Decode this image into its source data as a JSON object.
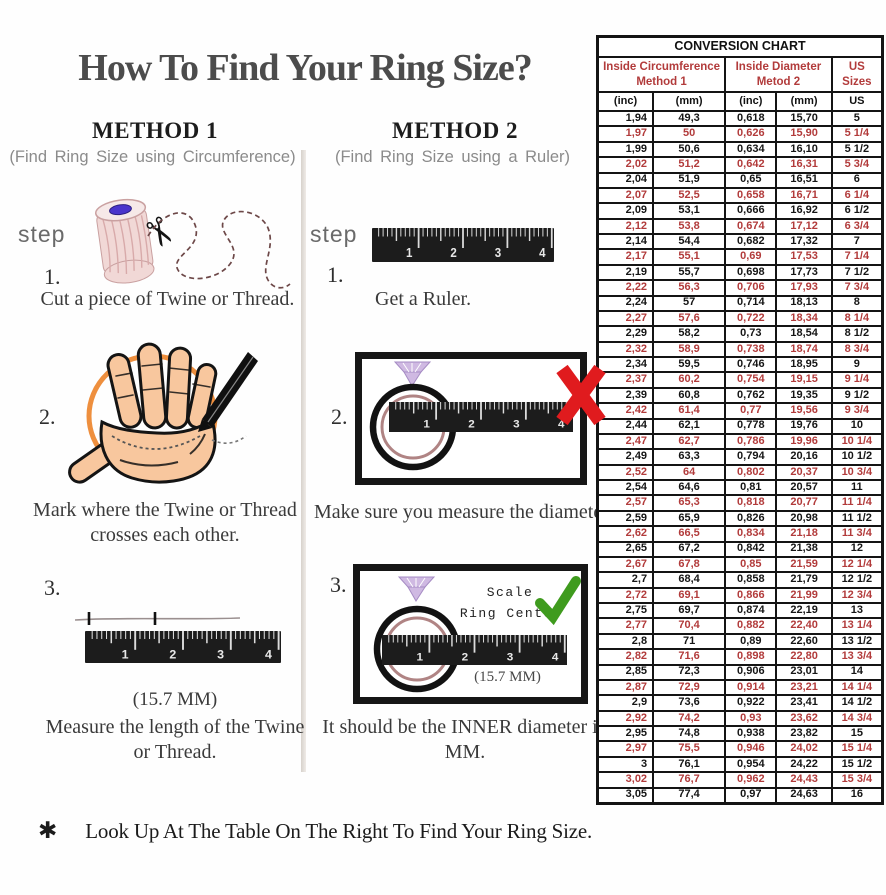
{
  "title": "How To Find Your Ring Size?",
  "method1": {
    "heading": "METHOD 1",
    "subtitle": "(Find Ring Size using Circumference)",
    "step_label": "step",
    "step1_num": "1.",
    "step1_text": "Cut a piece of Twine or Thread.",
    "step2_num": "2.",
    "step2_text": "Mark where the Twine or Thread crosses each other.",
    "step3_num": "3.",
    "step3_note": "(15.7 MM)",
    "step3_text": "Measure the length of the Twine or Thread."
  },
  "method2": {
    "heading": "METHOD 2",
    "subtitle": "(Find Ring Size using a Ruler)",
    "step_label": "step",
    "step1_num": "1.",
    "step1_text": "Get a Ruler.",
    "step2_num": "2.",
    "step2_text": "Make sure you measure the diameter.",
    "step3_num": "3.",
    "scale_line1": "Scale",
    "scale_line2": "Ring Center",
    "ruler_note": "(15.7 MM)",
    "step3_text": "It should be the INNER diameter in MM."
  },
  "footer": {
    "marker": "✱",
    "text": "Look Up At The Table On The Right To Find Your Ring Size."
  },
  "colors": {
    "table_red": "#b23b3b",
    "wrong_x_red": "#e01b1e",
    "check_green": "#3f9b1e",
    "hand_circle_orange": "#ee8f3e"
  },
  "conversion_chart": {
    "title": "CONVERSION CHART",
    "group_headers": [
      "Inside Circumference Method 1",
      "Inside Diameter Metod 2",
      "US Sizes"
    ],
    "unit_headers": [
      "(inc)",
      "(mm)",
      "(inc)",
      "(mm)",
      "US"
    ],
    "rows": [
      [
        "1,94",
        "49,3",
        "0,618",
        "15,70",
        "5"
      ],
      [
        "1,97",
        "50",
        "0,626",
        "15,90",
        "5 1/4"
      ],
      [
        "1,99",
        "50,6",
        "0,634",
        "16,10",
        "5 1/2"
      ],
      [
        "2,02",
        "51,2",
        "0,642",
        "16,31",
        "5 3/4"
      ],
      [
        "2,04",
        "51,9",
        "0,65",
        "16,51",
        "6"
      ],
      [
        "2,07",
        "52,5",
        "0,658",
        "16,71",
        "6 1/4"
      ],
      [
        "2,09",
        "53,1",
        "0,666",
        "16,92",
        "6 1/2"
      ],
      [
        "2,12",
        "53,8",
        "0,674",
        "17,12",
        "6 3/4"
      ],
      [
        "2,14",
        "54,4",
        "0,682",
        "17,32",
        "7"
      ],
      [
        "2,17",
        "55,1",
        "0,69",
        "17,53",
        "7 1/4"
      ],
      [
        "2,19",
        "55,7",
        "0,698",
        "17,73",
        "7 1/2"
      ],
      [
        "2,22",
        "56,3",
        "0,706",
        "17,93",
        "7 3/4"
      ],
      [
        "2,24",
        "57",
        "0,714",
        "18,13",
        "8"
      ],
      [
        "2,27",
        "57,6",
        "0,722",
        "18,34",
        "8 1/4"
      ],
      [
        "2,29",
        "58,2",
        "0,73",
        "18,54",
        "8 1/2"
      ],
      [
        "2,32",
        "58,9",
        "0,738",
        "18,74",
        "8 3/4"
      ],
      [
        "2,34",
        "59,5",
        "0,746",
        "18,95",
        "9"
      ],
      [
        "2,37",
        "60,2",
        "0,754",
        "19,15",
        "9 1/4"
      ],
      [
        "2,39",
        "60,8",
        "0,762",
        "19,35",
        "9 1/2"
      ],
      [
        "2,42",
        "61,4",
        "0,77",
        "19,56",
        "9 3/4"
      ],
      [
        "2,44",
        "62,1",
        "0,778",
        "19,76",
        "10"
      ],
      [
        "2,47",
        "62,7",
        "0,786",
        "19,96",
        "10 1/4"
      ],
      [
        "2,49",
        "63,3",
        "0,794",
        "20,16",
        "10 1/2"
      ],
      [
        "2,52",
        "64",
        "0,802",
        "20,37",
        "10 3/4"
      ],
      [
        "2,54",
        "64,6",
        "0,81",
        "20,57",
        "11"
      ],
      [
        "2,57",
        "65,3",
        "0,818",
        "20,77",
        "11 1/4"
      ],
      [
        "2,59",
        "65,9",
        "0,826",
        "20,98",
        "11 1/2"
      ],
      [
        "2,62",
        "66,5",
        "0,834",
        "21,18",
        "11 3/4"
      ],
      [
        "2,65",
        "67,2",
        "0,842",
        "21,38",
        "12"
      ],
      [
        "2,67",
        "67,8",
        "0,85",
        "21,59",
        "12 1/4"
      ],
      [
        "2,7",
        "68,4",
        "0,858",
        "21,79",
        "12 1/2"
      ],
      [
        "2,72",
        "69,1",
        "0,866",
        "21,99",
        "12 3/4"
      ],
      [
        "2,75",
        "69,7",
        "0,874",
        "22,19",
        "13"
      ],
      [
        "2,77",
        "70,4",
        "0,882",
        "22,40",
        "13 1/4"
      ],
      [
        "2,8",
        "71",
        "0,89",
        "22,60",
        "13 1/2"
      ],
      [
        "2,82",
        "71,6",
        "0,898",
        "22,80",
        "13 3/4"
      ],
      [
        "2,85",
        "72,3",
        "0,906",
        "23,01",
        "14"
      ],
      [
        "2,87",
        "72,9",
        "0,914",
        "23,21",
        "14 1/4"
      ],
      [
        "2,9",
        "73,6",
        "0,922",
        "23,41",
        "14 1/2"
      ],
      [
        "2,92",
        "74,2",
        "0,93",
        "23,62",
        "14 3/4"
      ],
      [
        "2,95",
        "74,8",
        "0,938",
        "23,82",
        "15"
      ],
      [
        "2,97",
        "75,5",
        "0,946",
        "24,02",
        "15 1/4"
      ],
      [
        "3",
        "76,1",
        "0,954",
        "24,22",
        "15 1/2"
      ],
      [
        "3,02",
        "76,7",
        "0,962",
        "24,43",
        "15 3/4"
      ],
      [
        "3,05",
        "77,4",
        "0,97",
        "24,63",
        "16"
      ]
    ]
  }
}
